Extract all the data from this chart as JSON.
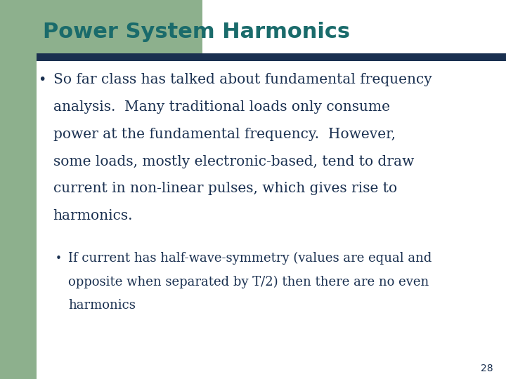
{
  "title": "Power System Harmonics",
  "title_color": "#1a6b6b",
  "title_fontsize": 22,
  "bg_color": "#ffffff",
  "left_bar_color": "#8db08d",
  "header_bar_color": "#1a3050",
  "text_color": "#1a3050",
  "bullet_fontsize": 14.5,
  "sub_bullet_fontsize": 13.0,
  "page_number": "28",
  "bullet1_lines": [
    "So far class has talked about fundamental frequency",
    "analysis.  Many traditional loads only consume",
    "power at the fundamental frequency.  However,",
    "some loads, mostly electronic-based, tend to draw",
    "current in non-linear pulses, which gives rise to",
    "harmonics."
  ],
  "sub_bullet_lines": [
    "If current has half-wave-symmetry (values are equal and",
    "opposite when separated by T/2) then there are no even",
    "harmonics"
  ]
}
